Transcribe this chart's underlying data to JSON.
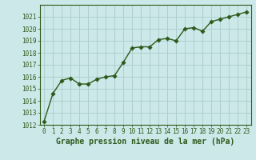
{
  "x": [
    0,
    1,
    2,
    3,
    4,
    5,
    6,
    7,
    8,
    9,
    10,
    11,
    12,
    13,
    14,
    15,
    16,
    17,
    18,
    19,
    20,
    21,
    22,
    23
  ],
  "y": [
    1012.3,
    1014.6,
    1015.7,
    1015.9,
    1015.4,
    1015.4,
    1015.8,
    1016.0,
    1016.1,
    1017.2,
    1018.4,
    1018.5,
    1018.5,
    1019.1,
    1019.2,
    1019.0,
    1020.0,
    1020.1,
    1019.8,
    1020.6,
    1020.8,
    1021.0,
    1021.2,
    1021.4
  ],
  "line_color": "#2d5a1b",
  "marker_color": "#2d5a1b",
  "bg_color": "#cce8e8",
  "grid_color": "#aacccc",
  "title": "Graphe pression niveau de la mer (hPa)",
  "xlim_min": -0.5,
  "xlim_max": 23.5,
  "ylim_min": 1012,
  "ylim_max": 1022,
  "yticks": [
    1012,
    1013,
    1014,
    1015,
    1016,
    1017,
    1018,
    1019,
    1020,
    1021
  ],
  "xticks": [
    0,
    1,
    2,
    3,
    4,
    5,
    6,
    7,
    8,
    9,
    10,
    11,
    12,
    13,
    14,
    15,
    16,
    17,
    18,
    19,
    20,
    21,
    22,
    23
  ],
  "title_fontsize": 7.0,
  "tick_fontsize": 5.5,
  "line_width": 1.0,
  "marker_size": 2.8
}
